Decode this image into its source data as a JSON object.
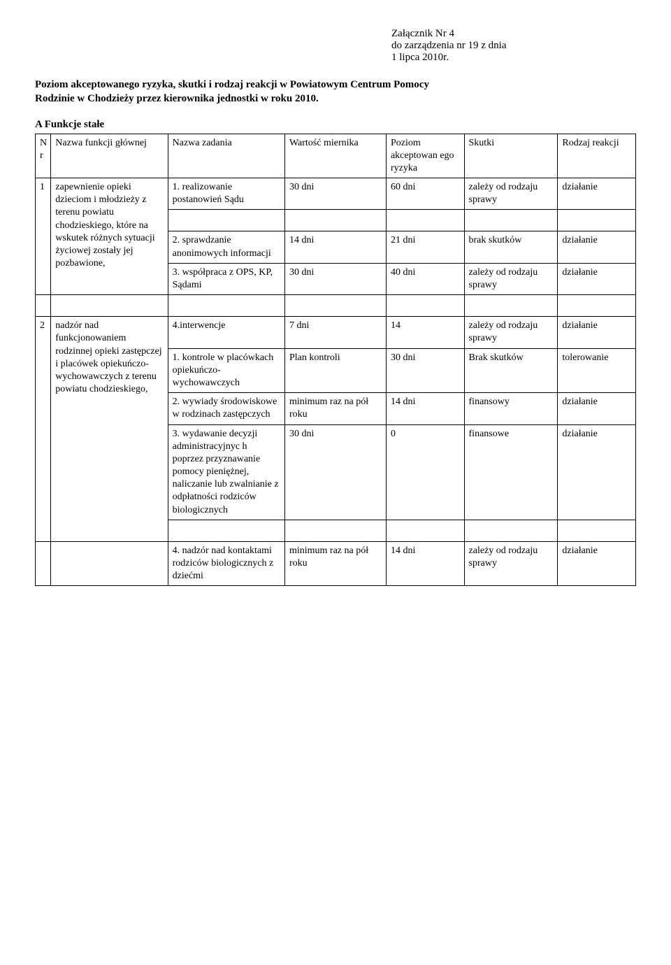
{
  "attachment": {
    "line1": "Załącznik Nr 4",
    "line2": "do zarządzenia nr 19 z dnia",
    "line3": "1 lipca 2010r."
  },
  "intro": {
    "line1": "Poziom akceptowanego ryzyka, skutki i rodzaj reakcji w Powiatowym Centrum Pomocy",
    "line2": "Rodzinie w Chodzieży przez kierownika jednostki w roku 2010."
  },
  "section_title": "A Funkcje stałe",
  "headers": {
    "nr": "N\nr",
    "func": "Nazwa funkcji głównej",
    "task": "Nazwa zadania",
    "meas": "Wartość miernika",
    "risk": "Poziom akceptowan ego ryzyka",
    "eff": "Skutki",
    "react": "Rodzaj reakcji"
  },
  "rows": [
    {
      "nr": "1",
      "func": "zapewnienie opieki dzieciom i młodzieży z terenu powiatu chodzieskiego, które na wskutek różnych sytuacji życiowej zostały jej pozbawione,",
      "task": "1. realizowanie postanowień Sądu",
      "meas": "30 dni",
      "risk": "60 dni",
      "eff": "zależy od rodzaju sprawy",
      "react": "działanie"
    },
    {
      "task": "2. sprawdzanie anonimowych informacji",
      "meas": "14 dni",
      "risk": "21 dni",
      "eff": "brak skutków",
      "react": "działanie"
    },
    {
      "task": "3. współpraca z OPS, KP, Sądami",
      "meas": "30 dni",
      "risk": "40 dni",
      "eff": "zależy od rodzaju sprawy",
      "react": "działanie"
    },
    {
      "task": "4.interwencje",
      "meas": "7 dni",
      "risk": "14",
      "eff": "zależy od rodzaju sprawy",
      "react": "działanie"
    },
    {
      "nr": "2",
      "func": "nadzór nad funkcjonowaniem rodzinnej opieki zastępczej i placówek opiekuńczo-wychowawczych z terenu powiatu chodzieskiego,",
      "task": "1. kontrole w placówkach opiekuńczo-wychowawczych",
      "meas": "Plan kontroli",
      "risk": "30 dni",
      "eff": "Brak skutków",
      "react": "tolerowanie"
    },
    {
      "task": "2. wywiady środowiskowe w rodzinach zastępczych",
      "meas": "minimum raz na pół roku",
      "risk": "14 dni",
      "eff": " finansowy",
      "react": "działanie"
    },
    {
      "task": "3. wydawanie decyzji administracyjnyc h poprzez przyznawanie pomocy pieniężnej, naliczanie lub zwalnianie z odpłatności rodziców biologicznych",
      "meas": "30 dni",
      "risk": "0",
      "eff": "finansowe",
      "react": "działanie"
    },
    {
      "task": "4. nadzór nad kontaktami rodziców biologicznych z dziećmi",
      "meas": "minimum raz na pół roku",
      "risk": "14 dni",
      "eff": "zależy od rodzaju sprawy",
      "react": "działanie"
    }
  ]
}
